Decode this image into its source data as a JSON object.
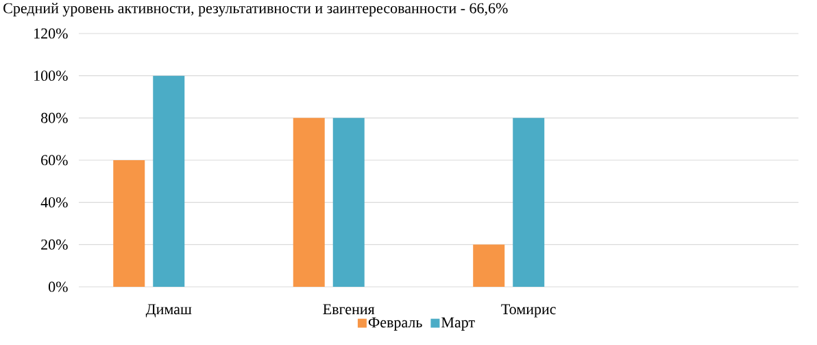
{
  "chart_data": {
    "type": "bar",
    "title": "Средний уровень активности, результативности и заинтересованности - 66,6%",
    "categories": [
      "Димаш",
      "Евгения",
      "Томирис",
      null
    ],
    "series": [
      {
        "name": "Февраль",
        "color": "#f79646",
        "values": [
          60,
          80,
          20,
          null
        ]
      },
      {
        "name": "Март",
        "color": "#4bacc6",
        "values": [
          100,
          80,
          80,
          null
        ]
      },
      {
        "color": "#8064a2",
        "values": [
          null,
          null,
          null,
          null
        ]
      }
    ],
    "ylim": [
      0,
      120
    ],
    "yticks": [
      {
        "value": 0,
        "label": "0%"
      },
      {
        "value": 20,
        "label": "20%"
      },
      {
        "value": 40,
        "label": "40%"
      },
      {
        "value": 60,
        "label": "60%"
      },
      {
        "value": 80,
        "label": "80%"
      },
      {
        "value": 100,
        "label": "100%"
      },
      {
        "value": 120,
        "label": "120%"
      }
    ],
    "grid": "y",
    "legend": "bottom"
  }
}
